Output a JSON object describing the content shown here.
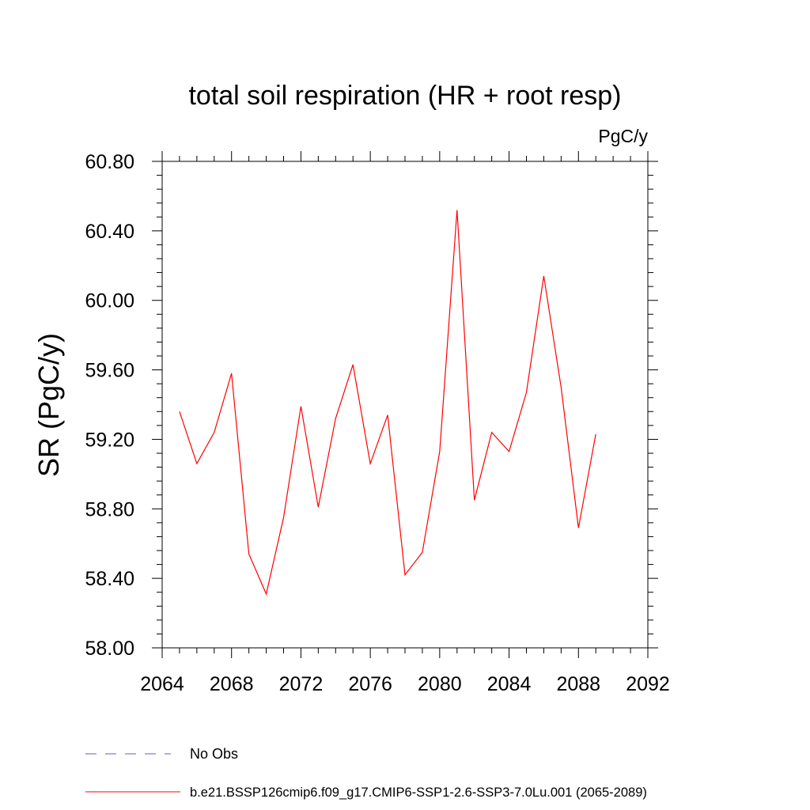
{
  "chart_data": {
    "type": "line",
    "title": "total soil respiration (HR + root resp)",
    "units_label": "PgC/y",
    "ylabel": "SR  (PgC/y)",
    "xlabel": "",
    "xlim": [
      2064,
      2092
    ],
    "ylim": [
      58.0,
      60.8
    ],
    "x_ticks": [
      "2064",
      "2068",
      "2072",
      "2076",
      "2080",
      "2084",
      "2088",
      "2092"
    ],
    "y_ticks": [
      "58.00",
      "58.40",
      "58.80",
      "59.20",
      "59.60",
      "60.00",
      "60.40",
      "60.80"
    ],
    "grid": false,
    "legend_position": "bottom",
    "legend": [
      {
        "name": "No Obs",
        "style": "dashed",
        "color": "#6a5acd"
      },
      {
        "name": "b.e21.BSSP126cmip6.f09_g17.CMIP6-SSP1-2.6-SSP3-7.0Lu.001 (2065-2089)",
        "style": "solid",
        "color": "#ff0000"
      }
    ],
    "series": [
      {
        "name": "b.e21.BSSP126cmip6.f09_g17.CMIP6-SSP1-2.6-SSP3-7.0Lu.001 (2065-2089)",
        "color": "#ff0000",
        "x": [
          2065,
          2066,
          2067,
          2068,
          2069,
          2070,
          2071,
          2072,
          2073,
          2074,
          2075,
          2076,
          2077,
          2078,
          2079,
          2080,
          2081,
          2082,
          2083,
          2084,
          2085,
          2086,
          2087,
          2088,
          2089
        ],
        "values": [
          59.36,
          59.06,
          59.24,
          59.58,
          58.54,
          58.31,
          58.75,
          59.39,
          58.81,
          59.32,
          59.63,
          59.06,
          59.34,
          58.42,
          58.55,
          59.13,
          60.52,
          58.85,
          59.24,
          59.13,
          59.47,
          60.14,
          59.5,
          58.69,
          59.23
        ]
      }
    ]
  }
}
